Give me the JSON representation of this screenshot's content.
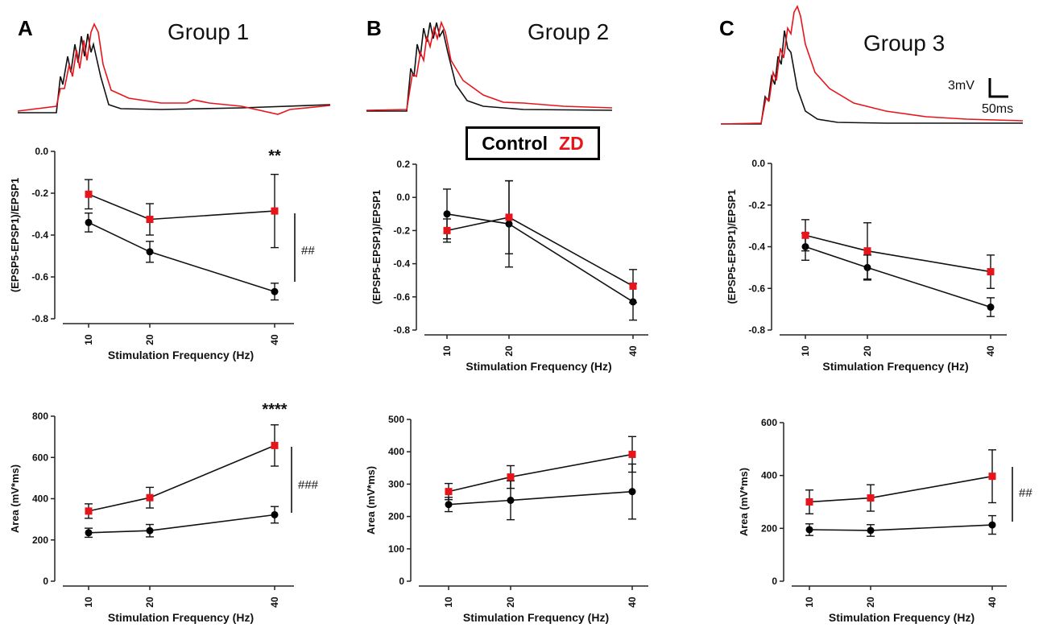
{
  "panels": [
    {
      "letter": "A",
      "title": "Group 1"
    },
    {
      "letter": "B",
      "title": "Group 2"
    },
    {
      "letter": "C",
      "title": "Group 3"
    }
  ],
  "legend": {
    "control": "Control",
    "zd": "ZD"
  },
  "scale_bar": {
    "voltage": "3mV",
    "time": "50ms"
  },
  "colors": {
    "control": "#000000",
    "zd": "#e8141c"
  },
  "chart_data": [
    {
      "type": "line",
      "panel": "A",
      "title": "",
      "xlabel": "Stimulation Frequency (Hz)",
      "ylabel": "(EPSP5-EPSP1)/EPSP1",
      "ylim": [
        -0.8,
        0.0
      ],
      "yticks": [
        -0.8,
        -0.6,
        -0.4,
        -0.2,
        0.0
      ],
      "ytick_labels": [
        "-0.8",
        "-0.6",
        "-0.4",
        "-0.2",
        "0.0"
      ],
      "x": [
        10,
        20,
        40
      ],
      "xtick_labels": [
        "10",
        "20",
        "40"
      ],
      "series": [
        {
          "name": "Control",
          "values": [
            -0.34,
            -0.48,
            -0.67
          ],
          "errors": [
            0.045,
            0.05,
            0.04
          ]
        },
        {
          "name": "ZD",
          "values": [
            -0.205,
            -0.325,
            -0.285
          ],
          "errors": [
            0.07,
            0.075,
            0.175
          ]
        }
      ],
      "annotations": {
        "point_sig": "**",
        "group_sig": "##"
      }
    },
    {
      "type": "line",
      "panel": "B",
      "title": "",
      "xlabel": "Stimulation Frequency (Hz)",
      "ylabel": "(EPSP5-EPSP1)/EPSP1",
      "ylim": [
        -0.8,
        0.2
      ],
      "yticks": [
        -0.8,
        -0.6,
        -0.4,
        -0.2,
        0.0,
        0.2
      ],
      "ytick_labels": [
        "-0.8",
        "-0.6",
        "-0.4",
        "-0.2",
        "0.0",
        "0.2"
      ],
      "x": [
        10,
        20,
        40
      ],
      "xtick_labels": [
        "10",
        "20",
        "40"
      ],
      "series": [
        {
          "name": "Control",
          "values": [
            -0.1,
            -0.16,
            -0.63
          ],
          "errors": [
            0.15,
            0.26,
            0.11
          ]
        },
        {
          "name": "ZD",
          "values": [
            -0.2,
            -0.12,
            -0.535
          ],
          "errors": [
            0.07,
            0.22,
            0.1
          ]
        }
      ],
      "annotations": {
        "point_sig": "",
        "group_sig": ""
      }
    },
    {
      "type": "line",
      "panel": "C",
      "title": "",
      "xlabel": "Stimulation Frequency (Hz)",
      "ylabel": "(EPSP5-EPSP1)/EPSP1",
      "ylim": [
        -0.8,
        0.0
      ],
      "yticks": [
        -0.8,
        -0.6,
        -0.4,
        -0.2,
        0.0
      ],
      "ytick_labels": [
        "-0.8",
        "-0.6",
        "-0.4",
        "-0.2",
        "0.0"
      ],
      "x": [
        10,
        20,
        40
      ],
      "xtick_labels": [
        "10",
        "20",
        "40"
      ],
      "series": [
        {
          "name": "Control",
          "values": [
            -0.4,
            -0.5,
            -0.69
          ],
          "errors": [
            0.065,
            0.06,
            0.045
          ]
        },
        {
          "name": "ZD",
          "values": [
            -0.345,
            -0.42,
            -0.52
          ],
          "errors": [
            0.075,
            0.135,
            0.08
          ]
        }
      ],
      "annotations": {
        "point_sig": "",
        "group_sig": ""
      }
    },
    {
      "type": "line",
      "panel": "A",
      "title": "",
      "xlabel": "Stimulation Frequency (Hz)",
      "ylabel": "Area (mV*ms)",
      "ylim": [
        0,
        800
      ],
      "yticks": [
        0,
        200,
        400,
        600,
        800
      ],
      "ytick_labels": [
        "0",
        "200",
        "400",
        "600",
        "800"
      ],
      "x": [
        10,
        20,
        40
      ],
      "xtick_labels": [
        "10",
        "20",
        "40"
      ],
      "series": [
        {
          "name": "Control",
          "values": [
            235,
            245,
            322
          ],
          "errors": [
            22,
            30,
            40
          ]
        },
        {
          "name": "ZD",
          "values": [
            340,
            405,
            658
          ],
          "errors": [
            35,
            50,
            100
          ]
        }
      ],
      "annotations": {
        "point_sig": "****",
        "group_sig": "###"
      }
    },
    {
      "type": "line",
      "panel": "B",
      "title": "",
      "xlabel": "Stimulation Frequency (Hz)",
      "ylabel": "Area (mV*ms)",
      "ylim": [
        0,
        500
      ],
      "yticks": [
        0,
        100,
        200,
        300,
        400,
        500
      ],
      "ytick_labels": [
        "0",
        "100",
        "200",
        "300",
        "400",
        "500"
      ],
      "x": [
        10,
        20,
        40
      ],
      "xtick_labels": [
        "10",
        "20",
        "40"
      ],
      "series": [
        {
          "name": "Control",
          "values": [
            237,
            250,
            277
          ],
          "errors": [
            22,
            60,
            85
          ]
        },
        {
          "name": "ZD",
          "values": [
            277,
            322,
            392
          ],
          "errors": [
            25,
            35,
            55
          ]
        }
      ],
      "annotations": {
        "point_sig": "",
        "group_sig": ""
      }
    },
    {
      "type": "line",
      "panel": "C",
      "title": "",
      "xlabel": "Stimulation Frequency (Hz)",
      "ylabel": "Area (mV*ms)",
      "ylim": [
        0,
        600
      ],
      "yticks": [
        0,
        200,
        400,
        600
      ],
      "ytick_labels": [
        "0",
        "200",
        "400",
        "600"
      ],
      "x": [
        10,
        20,
        40
      ],
      "xtick_labels": [
        "10",
        "20",
        "40"
      ],
      "series": [
        {
          "name": "Control",
          "values": [
            195,
            192,
            213
          ],
          "errors": [
            22,
            22,
            35
          ]
        },
        {
          "name": "ZD",
          "values": [
            300,
            315,
            397
          ],
          "errors": [
            45,
            50,
            100
          ]
        }
      ],
      "annotations": {
        "point_sig": "",
        "group_sig": "##"
      }
    }
  ]
}
